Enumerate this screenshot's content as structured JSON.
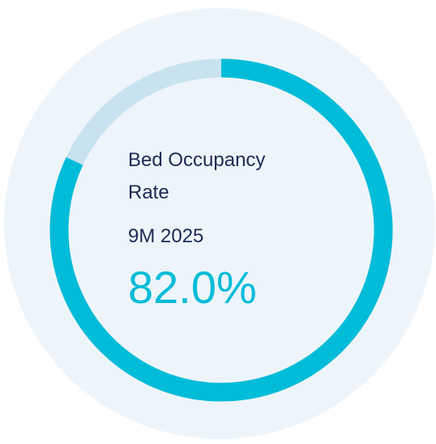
{
  "chart_data": {
    "type": "gauge",
    "title": "Bed Occupancy Rate",
    "subtitle": "9M 2025",
    "values": [
      82.0
    ],
    "value_labels": [
      "82.0%"
    ],
    "ylim": [
      0,
      100
    ],
    "color": "#00bcd8",
    "track_color": "#c8e3ef",
    "background_color": "#eef5fa"
  }
}
